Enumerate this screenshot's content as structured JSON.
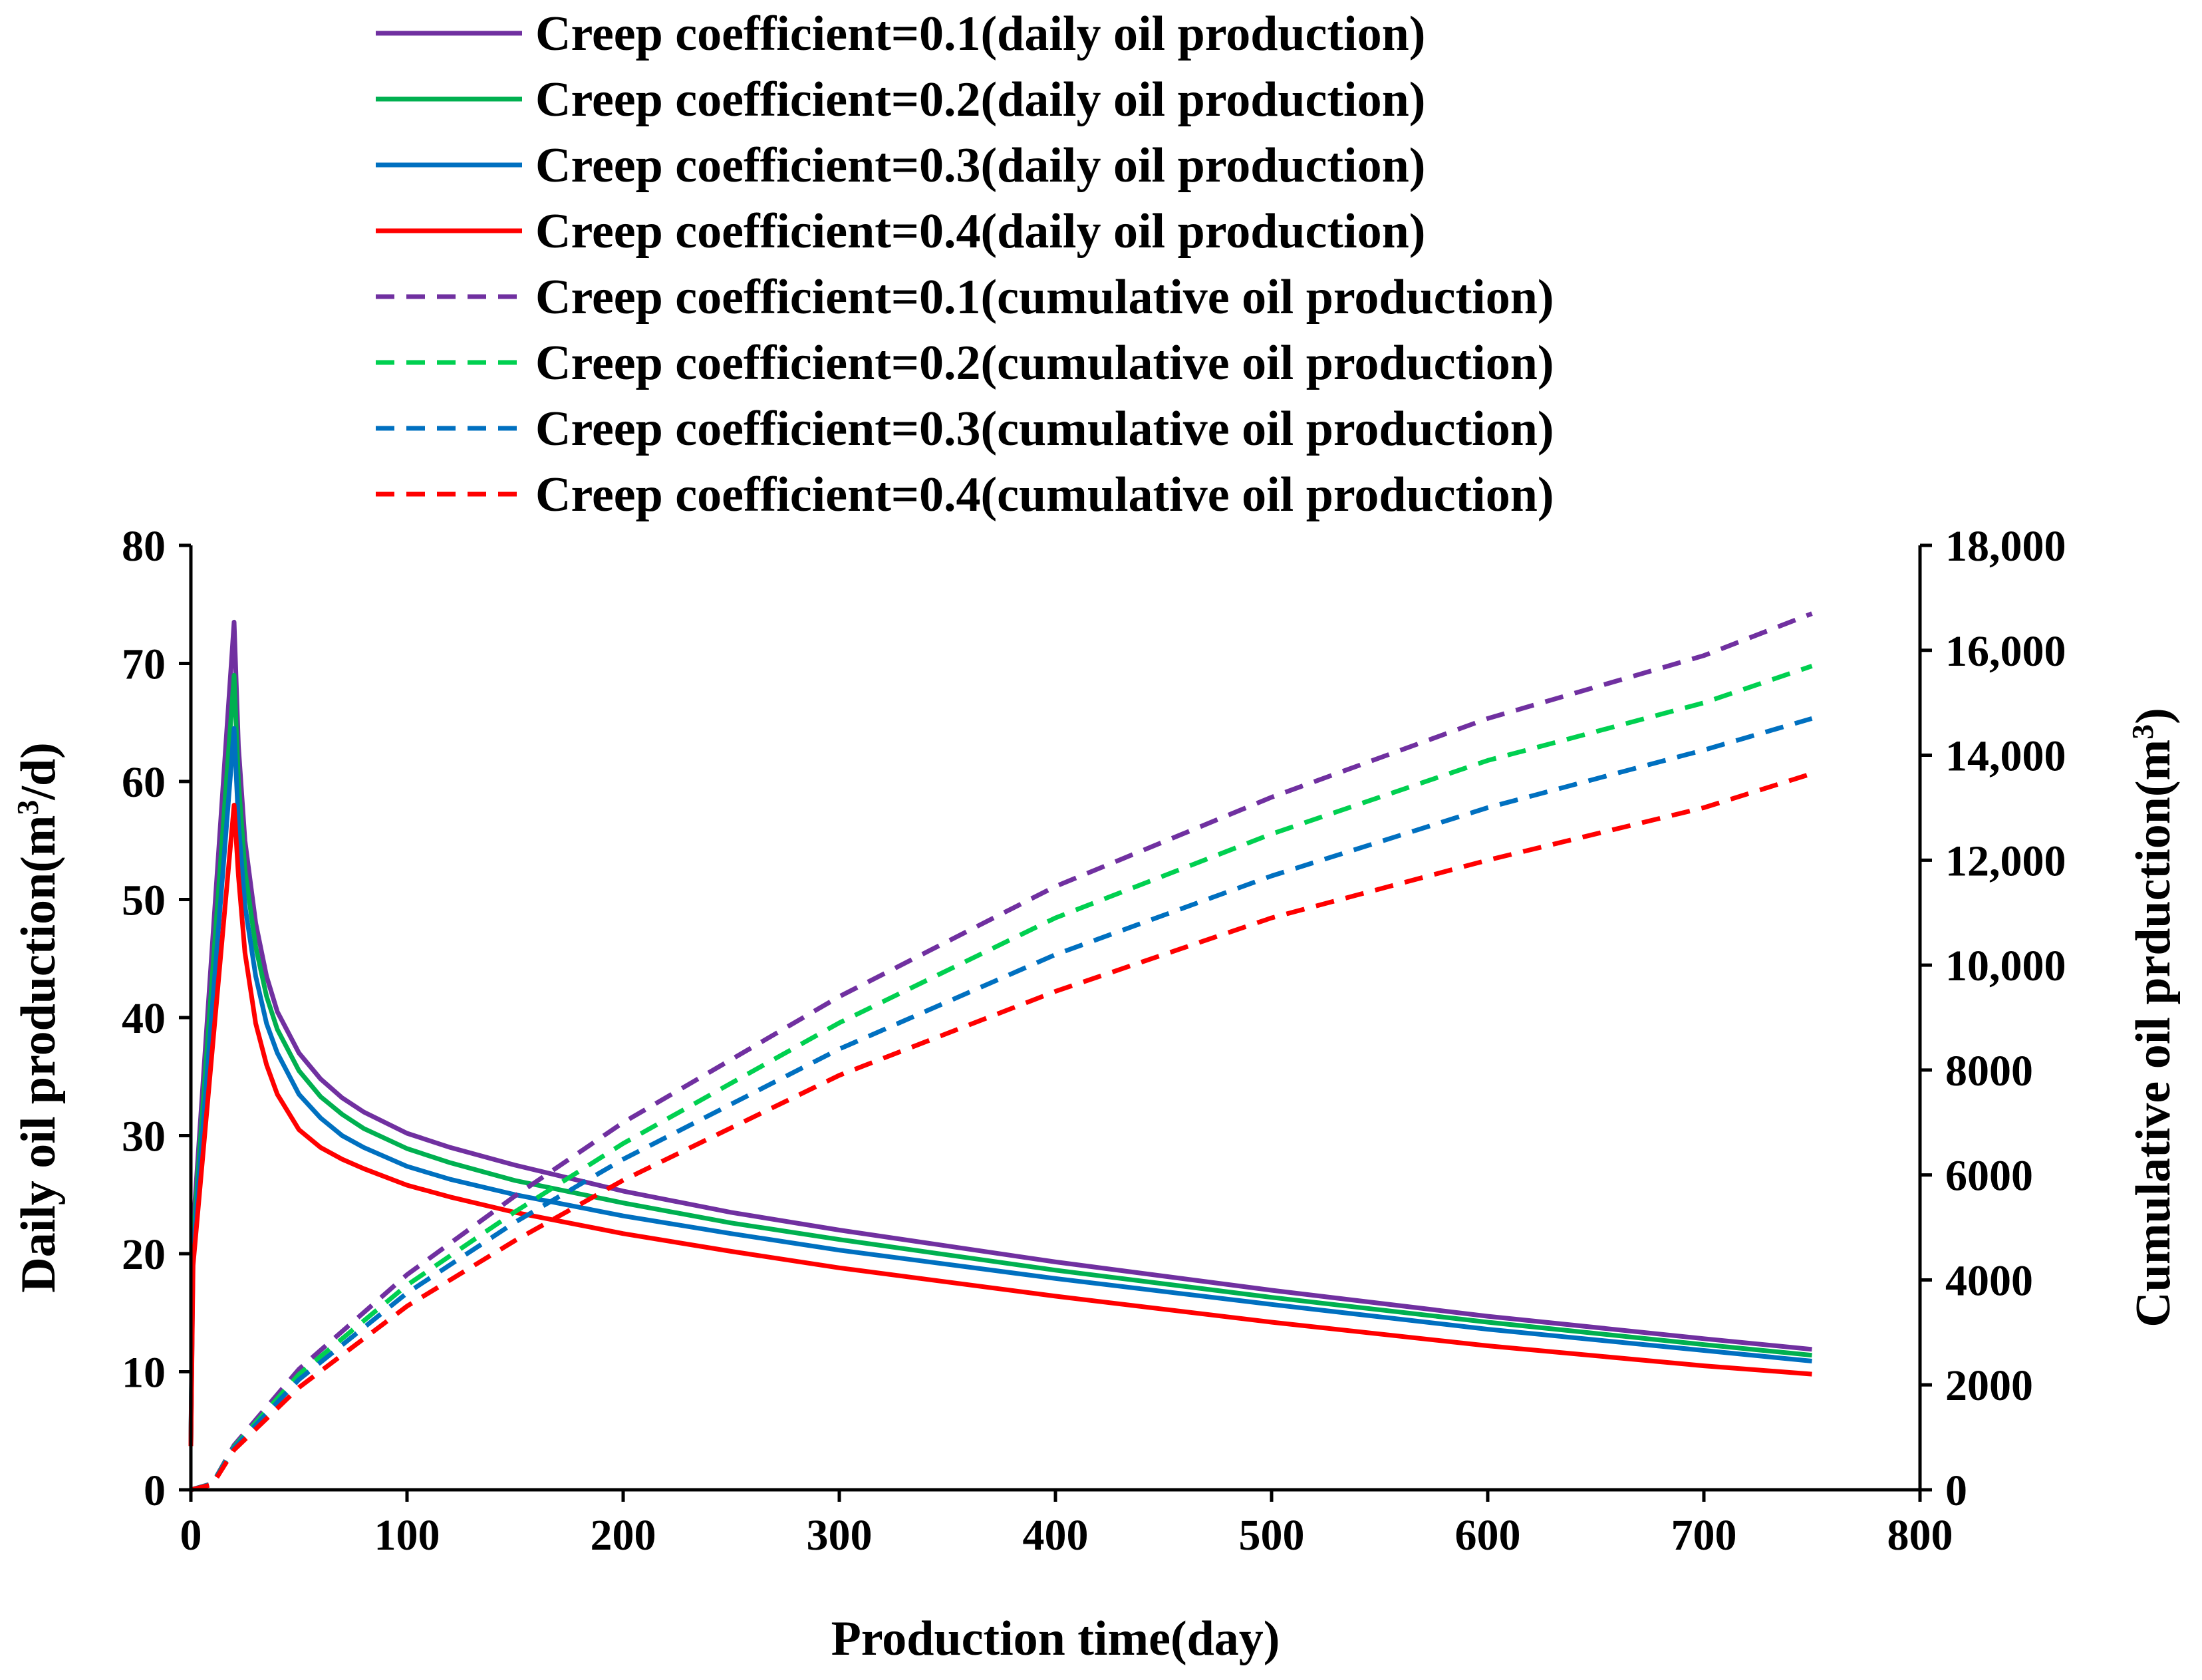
{
  "chart_data": {
    "type": "line",
    "title": "",
    "xlabel": "Production time(day)",
    "ylabel": {
      "text": "Daily oil production(m",
      "sup": "3",
      "tail": "/d)"
    },
    "y2label": {
      "text": "Cumulative oil prduction(m",
      "sup": "3",
      "tail": ")"
    },
    "xlim": [
      0,
      800
    ],
    "ylim": [
      0,
      80
    ],
    "y2lim": [
      0,
      18000
    ],
    "xticks": [
      0,
      100,
      200,
      300,
      400,
      500,
      600,
      700,
      800
    ],
    "xtick_labels": [
      "0",
      "100",
      "200",
      "300",
      "400",
      "500",
      "600",
      "700",
      "800"
    ],
    "yticks": [
      0,
      10,
      20,
      30,
      40,
      50,
      60,
      70,
      80
    ],
    "ytick_labels": [
      "0",
      "10",
      "20",
      "30",
      "40",
      "50",
      "60",
      "70",
      "80"
    ],
    "y2ticks": [
      0,
      2000,
      4000,
      6000,
      8000,
      10000,
      12000,
      14000,
      16000,
      18000
    ],
    "y2tick_labels": [
      "0",
      "2000",
      "4000",
      "6000",
      "8000",
      "10,000",
      "12,000",
      "14,000",
      "16,000",
      "18,000"
    ],
    "grid": false,
    "legend_position": "top",
    "series": [
      {
        "name": "Creep coefficient=0.1(daily oil production)",
        "axis": "left",
        "dash": false,
        "color": "#7030A0",
        "x": [
          0,
          1,
          20,
          22,
          25,
          30,
          35,
          40,
          50,
          60,
          70,
          80,
          100,
          120,
          150,
          200,
          250,
          300,
          400,
          500,
          600,
          700,
          750
        ],
        "y": [
          4,
          22,
          73.5,
          63,
          55,
          48,
          43.5,
          40.5,
          37,
          34.8,
          33.2,
          32,
          30.2,
          29,
          27.5,
          25.3,
          23.5,
          22,
          19.3,
          16.9,
          14.7,
          12.8,
          11.9
        ]
      },
      {
        "name": "Creep coefficient=0.2(daily oil production)",
        "axis": "left",
        "dash": false,
        "color": "#00B050",
        "x": [
          0,
          1,
          20,
          22,
          25,
          30,
          35,
          40,
          50,
          60,
          70,
          80,
          100,
          120,
          150,
          200,
          250,
          300,
          400,
          500,
          600,
          700,
          750
        ],
        "y": [
          3.9,
          21,
          69,
          60,
          52.5,
          46,
          41.8,
          39,
          35.5,
          33.3,
          31.8,
          30.6,
          28.9,
          27.7,
          26.2,
          24.3,
          22.6,
          21.2,
          18.6,
          16.3,
          14.2,
          12.3,
          11.4
        ]
      },
      {
        "name": "Creep coefficient=0.3(daily oil production)",
        "axis": "left",
        "dash": false,
        "color": "#0070C0",
        "x": [
          0,
          1,
          20,
          22,
          25,
          30,
          35,
          40,
          50,
          60,
          70,
          80,
          100,
          120,
          150,
          200,
          250,
          300,
          400,
          500,
          600,
          700,
          750
        ],
        "y": [
          3.8,
          20,
          64.5,
          56.5,
          49.5,
          43.5,
          39.5,
          37,
          33.5,
          31.5,
          30,
          29,
          27.4,
          26.3,
          25,
          23.2,
          21.7,
          20.3,
          17.9,
          15.7,
          13.6,
          11.8,
          10.9
        ]
      },
      {
        "name": "Creep coefficient=0.4(daily oil production)",
        "axis": "left",
        "dash": false,
        "color": "#FF0000",
        "x": [
          0,
          1,
          20,
          22,
          25,
          30,
          35,
          40,
          50,
          60,
          70,
          80,
          100,
          120,
          150,
          200,
          250,
          300,
          400,
          500,
          600,
          700,
          750
        ],
        "y": [
          3.7,
          19,
          58,
          52,
          45.5,
          39.5,
          36,
          33.5,
          30.5,
          29,
          28,
          27.2,
          25.8,
          24.8,
          23.5,
          21.7,
          20.2,
          18.8,
          16.4,
          14.2,
          12.2,
          10.5,
          9.8
        ]
      },
      {
        "name": "Creep coefficient=0.1(cumulative oil production)",
        "axis": "right",
        "dash": true,
        "color": "#7030A0",
        "x": [
          0,
          10,
          20,
          50,
          100,
          150,
          200,
          300,
          400,
          500,
          600,
          700,
          750
        ],
        "y": [
          0,
          120,
          850,
          2300,
          4100,
          5600,
          7000,
          9400,
          11500,
          13200,
          14700,
          15900,
          16700
        ]
      },
      {
        "name": "Creep coefficient=0.2(cumulative oil production)",
        "axis": "right",
        "dash": true,
        "color": "#00D050",
        "x": [
          0,
          10,
          20,
          50,
          100,
          150,
          200,
          300,
          400,
          500,
          600,
          700,
          750
        ],
        "y": [
          0,
          115,
          820,
          2200,
          3900,
          5300,
          6600,
          8900,
          10900,
          12500,
          13900,
          15000,
          15700
        ]
      },
      {
        "name": "Creep coefficient=0.3(cumulative oil production)",
        "axis": "right",
        "dash": true,
        "color": "#0070C0",
        "x": [
          0,
          10,
          20,
          50,
          100,
          150,
          200,
          300,
          400,
          500,
          600,
          700,
          750
        ],
        "y": [
          0,
          110,
          800,
          2100,
          3750,
          5100,
          6300,
          8400,
          10200,
          11700,
          13000,
          14100,
          14700
        ]
      },
      {
        "name": "Creep coefficient=0.4(cumulative oil production)",
        "axis": "right",
        "dash": true,
        "color": "#FF0000",
        "x": [
          0,
          10,
          20,
          50,
          100,
          150,
          200,
          300,
          400,
          500,
          600,
          700,
          750
        ],
        "y": [
          0,
          100,
          760,
          1950,
          3500,
          4750,
          5900,
          7900,
          9500,
          10900,
          12000,
          13000,
          13650
        ]
      }
    ]
  }
}
